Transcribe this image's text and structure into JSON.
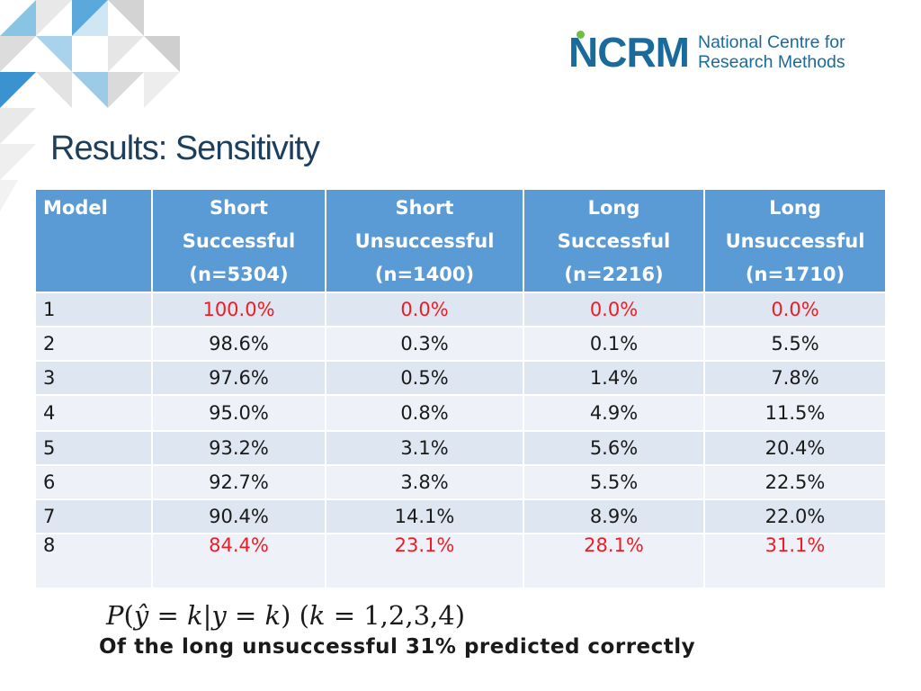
{
  "logo": {
    "mark": "NCRM",
    "line1": "National Centre for",
    "line2": "Research Methods"
  },
  "slide": {
    "title": "Results: Sensitivity"
  },
  "table": {
    "headers": [
      [
        "Model"
      ],
      [
        "Short",
        "Successful",
        "(n=5304)"
      ],
      [
        "Short",
        "Unsuccessful",
        "(n=1400)"
      ],
      [
        "Long",
        "Successful",
        "(n=2216)"
      ],
      [
        "Long",
        "Unsuccessful",
        "(n=1710)"
      ]
    ],
    "rows": [
      {
        "model": "1",
        "values": [
          "100.0%",
          "0.0%",
          "0.0%",
          "0.0%"
        ]
      },
      {
        "model": "2",
        "values": [
          "98.6%",
          "0.3%",
          "0.1%",
          "5.5%"
        ]
      },
      {
        "model": "3",
        "values": [
          "97.6%",
          "0.5%",
          "1.4%",
          "7.8%"
        ]
      },
      {
        "model": "4",
        "values": [
          "95.0%",
          "0.8%",
          "4.9%",
          "11.5%"
        ]
      },
      {
        "model": "5",
        "values": [
          "93.2%",
          "3.1%",
          "5.6%",
          "20.4%"
        ]
      },
      {
        "model": "6",
        "values": [
          "92.7%",
          "3.8%",
          "5.5%",
          "22.5%"
        ]
      },
      {
        "model": "7",
        "values": [
          "90.4%",
          "14.1%",
          "8.9%",
          "22.0%"
        ]
      },
      {
        "model": "8",
        "values": [
          "84.4%",
          "23.1%",
          "28.1%",
          "31.1%"
        ]
      }
    ],
    "highlighted_value_rows": [
      "1",
      "8"
    ]
  },
  "formula": {
    "text": "P(ŷ = k|y = k) (k = 1,2,3,4)"
  },
  "note": "Of the long unsuccessful 31% predicted correctly",
  "colors": {
    "header_fill": "#5b9bd5",
    "row_odd": "#dde6f1",
    "row_even": "#eef2f8",
    "highlight_text": "#ee1c24",
    "title": "#1d3f5e",
    "brand_blue": "#1b6a9c",
    "brand_green": "#6fbd45"
  }
}
